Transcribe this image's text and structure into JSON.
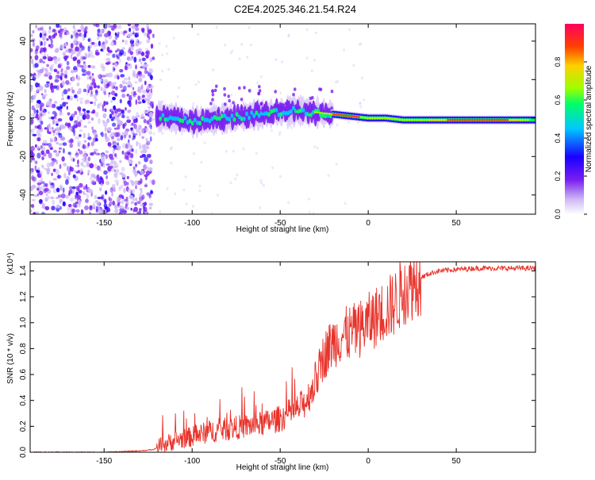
{
  "title": "C2E4.2025.346.21.54.R24",
  "chart_data": [
    {
      "type": "heatmap",
      "xlabel": "Height of straight line (km)",
      "ylabel": "Frequency (Hz)",
      "xlim": [
        -192,
        95
      ],
      "ylim": [
        -50,
        49
      ],
      "xticks": [
        -150,
        -100,
        -50,
        0,
        50
      ],
      "yticks": [
        -40,
        -20,
        0,
        20,
        40
      ],
      "colorbar": {
        "label": "Normalized spectral amplitude",
        "range": [
          0,
          1
        ],
        "ticks": [
          "0.0",
          "0.2",
          "0.4",
          "0.6",
          "0.8"
        ],
        "colors": [
          "#ffffff",
          "#cdb6f5",
          "#7a1ff0",
          "#1a00ff",
          "#00c8ff",
          "#00ff66",
          "#9cff00",
          "#ffd000",
          "#ff4000",
          "#ff0060"
        ]
      },
      "noise_region_x": [
        -192,
        -122
      ],
      "ridge": {
        "x": [
          -120,
          -110,
          -100,
          -90,
          -80,
          -70,
          -60,
          -50,
          -40,
          -30,
          -20,
          -10,
          0,
          10,
          20,
          30,
          40,
          50,
          60,
          70,
          80,
          90,
          95
        ],
        "freq": [
          1,
          0,
          -2,
          -1,
          0,
          1,
          2,
          3,
          4,
          3,
          2,
          1,
          0,
          0,
          -1,
          -1,
          -1,
          -1,
          -1,
          -1,
          -1,
          -1,
          -1
        ]
      }
    },
    {
      "type": "line",
      "xlabel": "Height of straight line (km)",
      "ylabel": "SNR (10 * v/v)",
      "y_multiplier": "(x10⁴)",
      "xlim": [
        -192,
        95
      ],
      "ylim": [
        0,
        1.47
      ],
      "xticks": [
        -150,
        -100,
        -50,
        0,
        50
      ],
      "yticks": [
        0.0,
        0.2,
        0.4,
        0.6,
        0.8,
        1.0,
        1.2,
        1.4
      ],
      "series": [
        {
          "name": "SNR",
          "color": "#e8332b",
          "x": [
            -192,
            -170,
            -150,
            -130,
            -122,
            -118,
            -110,
            -100,
            -90,
            -80,
            -70,
            -60,
            -50,
            -45,
            -40,
            -35,
            -30,
            -25,
            -20,
            -15,
            -10,
            -5,
            0,
            5,
            10,
            15,
            20,
            25,
            30,
            35,
            40,
            50,
            60,
            70,
            80,
            95
          ],
          "y": [
            0.0,
            0.0,
            0.0,
            0.01,
            0.02,
            0.05,
            0.09,
            0.12,
            0.16,
            0.18,
            0.2,
            0.22,
            0.26,
            0.3,
            0.33,
            0.4,
            0.55,
            0.75,
            0.85,
            0.9,
            0.92,
            0.95,
            1.0,
            1.05,
            1.1,
            1.15,
            1.25,
            1.3,
            1.35,
            1.38,
            1.4,
            1.41,
            1.42,
            1.42,
            1.42,
            1.42
          ]
        }
      ]
    }
  ]
}
